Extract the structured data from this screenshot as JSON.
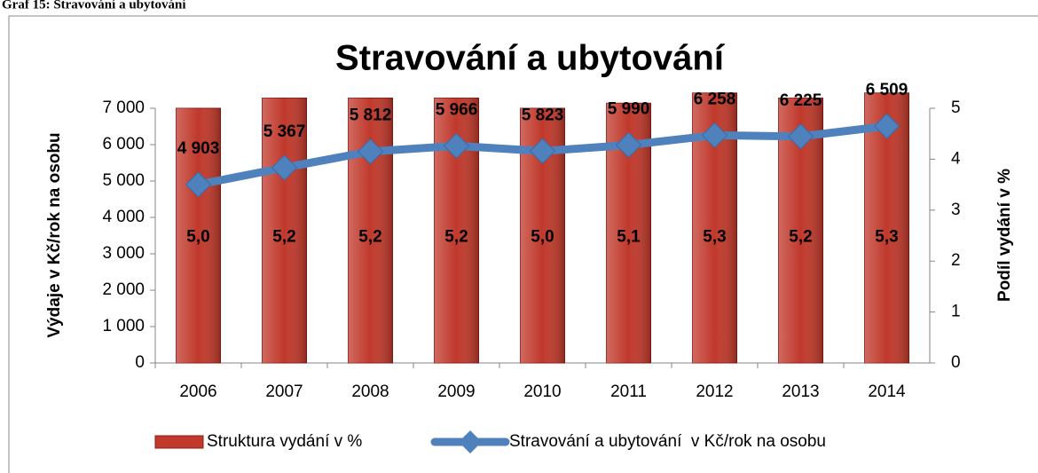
{
  "caption": "Graf 15: Stravování a ubytování",
  "chart_data": {
    "type": "bar-line",
    "title": "Stravování a ubytování",
    "y_label": "Výdaje v Kč/rok na osobu",
    "y2_label": "Podíl vydání v %",
    "categories": [
      "2006",
      "2007",
      "2008",
      "2009",
      "2010",
      "2011",
      "2012",
      "2013",
      "2014"
    ],
    "series": [
      {
        "name": "Struktura vydání v %",
        "type": "bar",
        "axis": "y2",
        "color": "#c0392b",
        "values": [
          5.0,
          5.2,
          5.2,
          5.2,
          5.0,
          5.1,
          5.3,
          5.2,
          5.3
        ],
        "value_labels": [
          "5,0",
          "5,2",
          "5,2",
          "5,2",
          "5,0",
          "5,1",
          "5,3",
          "5,2",
          "5,3"
        ]
      },
      {
        "name": "Stravování a ubytování  v Kč/rok na osobu",
        "type": "line",
        "axis": "y",
        "color": "#4f81bd",
        "values": [
          4903,
          5367,
          5812,
          5966,
          5823,
          5990,
          6258,
          6225,
          6509
        ],
        "value_labels": [
          "4 903",
          "5 367",
          "5 812",
          "5 966",
          "5 823",
          "5 990",
          "6 258",
          "6 225",
          "6 509"
        ]
      }
    ],
    "ylim": [
      0,
      7000
    ],
    "yticks": [
      0,
      {
        "value": 1000,
        "label": "1 000"
      },
      {
        "value": 2000,
        "label": "2 000"
      },
      {
        "value": 3000,
        "label": "3 000"
      },
      {
        "value": 4000,
        "label": "4 000"
      },
      {
        "value": 5000,
        "label": "5 000"
      },
      {
        "value": 6000,
        "label": "6 000"
      },
      {
        "value": 7000,
        "label": "7 000"
      }
    ],
    "y2lim": [
      0,
      5
    ],
    "y2ticks": [
      0,
      1,
      2,
      3,
      4,
      5
    ],
    "legend": "bottom"
  }
}
